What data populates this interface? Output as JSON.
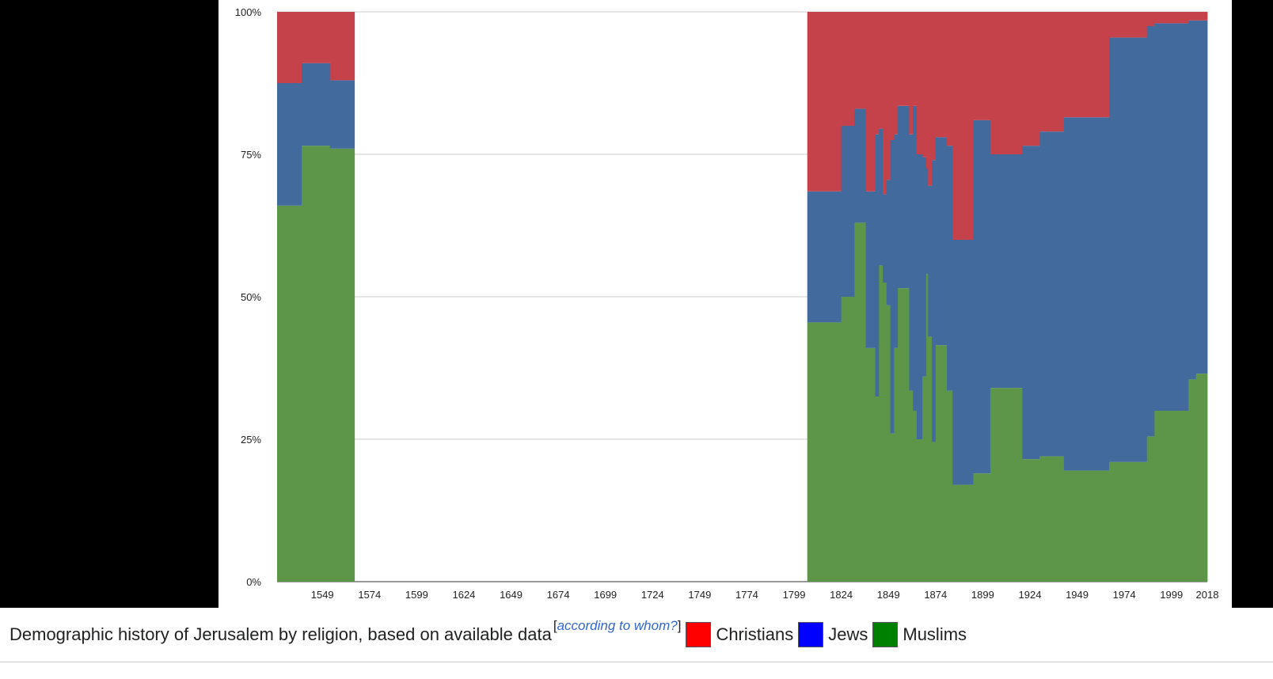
{
  "caption": {
    "text": "Demographic history of Jerusalem by religion, based on available data",
    "citation_open": "[",
    "citation_link": "according to whom?",
    "citation_close": "]"
  },
  "legend": [
    {
      "label": "Christians",
      "color": "#ff0000"
    },
    {
      "label": "Jews",
      "color": "#0000ff"
    },
    {
      "label": "Muslims",
      "color": "#008000"
    }
  ],
  "chart_data": {
    "type": "area",
    "title": "",
    "xlabel": "",
    "ylabel": "",
    "xlim": [
      1525,
      2018
    ],
    "ylim": [
      0,
      100
    ],
    "y_ticks": [
      "0%",
      "25%",
      "50%",
      "75%",
      "100%"
    ],
    "x_ticks": [
      "1549",
      "1574",
      "1599",
      "1624",
      "1649",
      "1674",
      "1699",
      "1724",
      "1749",
      "1774",
      "1799",
      "1824",
      "1849",
      "1874",
      "1899",
      "1924",
      "1949",
      "1974",
      "1999",
      "2018"
    ],
    "colors": {
      "Muslims": "#5d9648",
      "Jews": "#426a9c",
      "Christians": "#c6424a"
    },
    "series_order": [
      "Muslims",
      "Jews",
      "Christians"
    ],
    "note": "stacked percentages; each row = [start_year, end_year, Muslims %, Jews %]; Christians = remainder to 100%",
    "segments": [
      [
        1525,
        1538,
        66,
        21.5
      ],
      [
        1538,
        1553,
        76.5,
        14.5
      ],
      [
        1553,
        1566,
        76,
        12
      ],
      [
        1806,
        1824,
        45.5,
        23
      ],
      [
        1824,
        1831,
        50,
        30
      ],
      [
        1831,
        1837,
        63,
        20
      ],
      [
        1837,
        1842,
        41,
        27.5
      ],
      [
        1842,
        1844,
        32.5,
        46
      ],
      [
        1844,
        1846,
        55.5,
        24
      ],
      [
        1846,
        1848,
        52.5,
        15.5
      ],
      [
        1848,
        1850,
        48.5,
        22
      ],
      [
        1850,
        1852,
        26,
        51.5
      ],
      [
        1852,
        1854,
        41,
        37.5
      ],
      [
        1854,
        1860,
        51.5,
        32
      ],
      [
        1860,
        1862,
        33.5,
        45
      ],
      [
        1862,
        1864,
        30,
        53.5
      ],
      [
        1864,
        1867,
        25,
        50
      ],
      [
        1867,
        1869,
        36,
        38.5
      ],
      [
        1869,
        1870,
        54,
        18.5
      ],
      [
        1870,
        1872,
        43,
        26.5
      ],
      [
        1872,
        1874,
        24.5,
        49.5
      ],
      [
        1874,
        1880,
        41.5,
        36.5
      ],
      [
        1880,
        1883,
        33.5,
        43
      ],
      [
        1883,
        1894,
        17,
        43
      ],
      [
        1894,
        1903,
        19,
        62
      ],
      [
        1903,
        1920,
        34,
        41
      ],
      [
        1920,
        1929,
        21.5,
        55
      ],
      [
        1929,
        1942,
        22,
        57
      ],
      [
        1942,
        1966,
        19.5,
        62
      ],
      [
        1966,
        1986,
        21,
        74.5
      ],
      [
        1986,
        1990,
        25.5,
        72
      ],
      [
        1990,
        2008,
        30,
        68
      ],
      [
        2008,
        2012,
        35.5,
        63
      ],
      [
        2012,
        2018,
        36.5,
        62
      ]
    ]
  }
}
